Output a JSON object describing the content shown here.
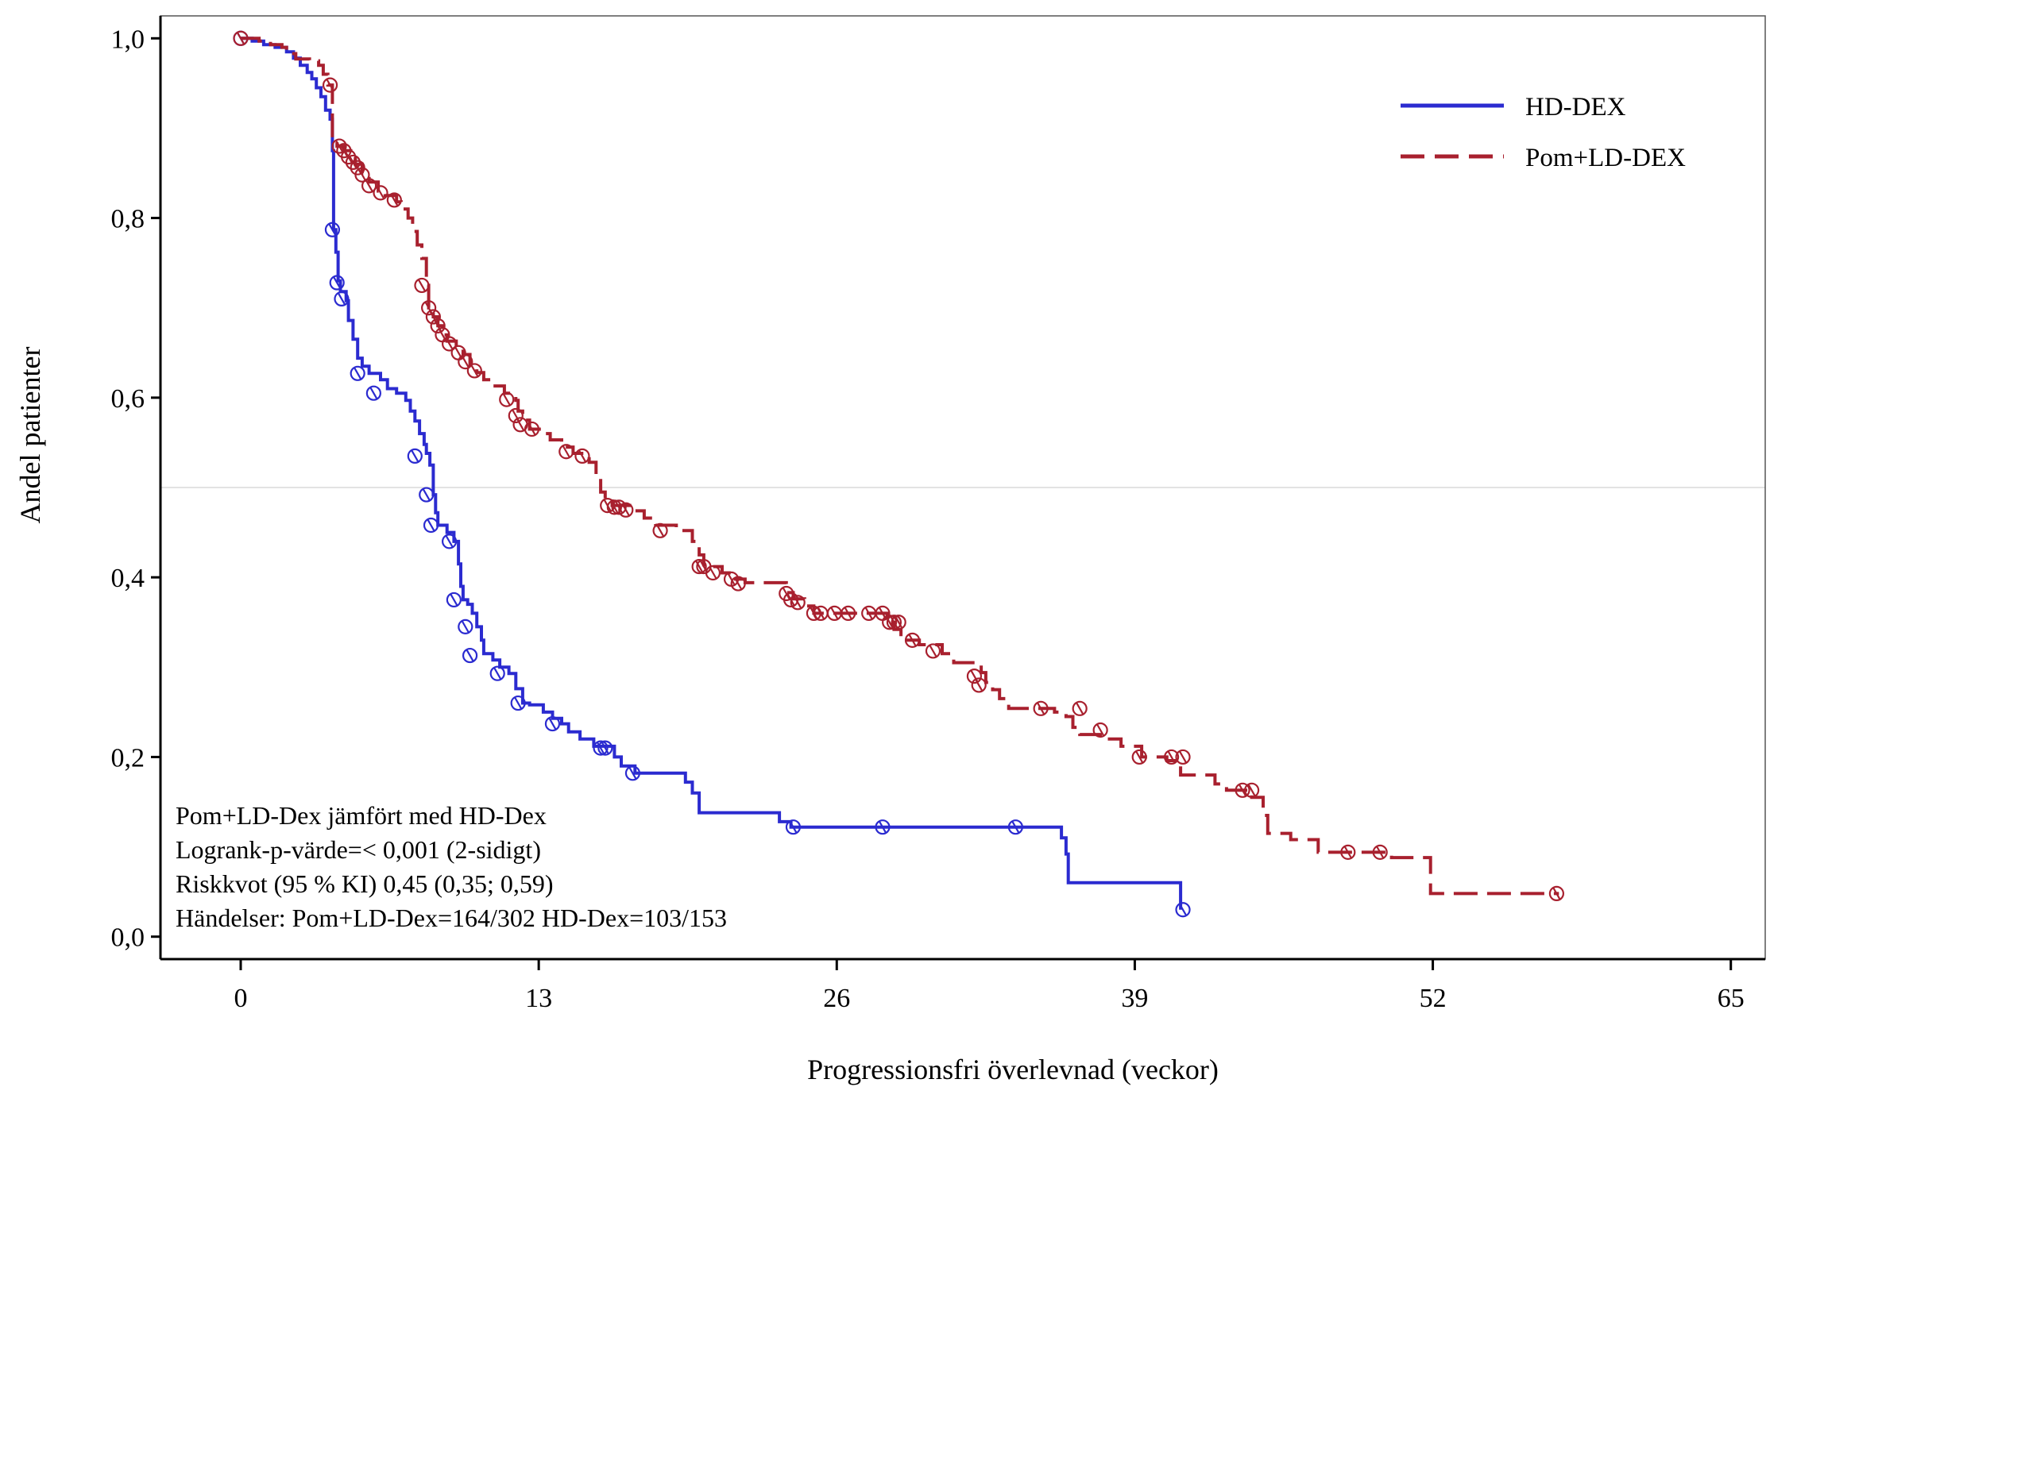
{
  "chart_data": {
    "type": "line",
    "subtype": "kaplan-meier",
    "xlabel": "Progressionsfri överlevnad (veckor)",
    "ylabel": "Andel patienter",
    "xlim": [
      -3.5,
      66.5
    ],
    "ylim": [
      -0.025,
      1.025
    ],
    "x_ticks": [
      0,
      13,
      26,
      39,
      52,
      65
    ],
    "x_tick_labels": [
      "0",
      "13",
      "26",
      "39",
      "52",
      "65"
    ],
    "y_ticks": [
      0.0,
      0.2,
      0.4,
      0.6,
      0.8,
      1.0
    ],
    "y_tick_labels": [
      "0,0",
      "0,2",
      "0,4",
      "0,6",
      "0,8",
      "1,0"
    ],
    "reference_line_y": 0.5,
    "legend_position": "top-right",
    "series": [
      {
        "name": "HD-DEX",
        "color": "#2b2bd0",
        "dash": "solid",
        "steps": [
          [
            0,
            1.0
          ],
          [
            0.5,
            0.997
          ],
          [
            1.0,
            0.993
          ],
          [
            1.5,
            0.99
          ],
          [
            2.0,
            0.985
          ],
          [
            2.3,
            0.978
          ],
          [
            2.6,
            0.97
          ],
          [
            2.9,
            0.962
          ],
          [
            3.1,
            0.955
          ],
          [
            3.3,
            0.945
          ],
          [
            3.5,
            0.935
          ],
          [
            3.7,
            0.92
          ],
          [
            3.9,
            0.91
          ],
          [
            4.0,
            0.875
          ],
          [
            4.05,
            0.787
          ],
          [
            4.15,
            0.762
          ],
          [
            4.25,
            0.73
          ],
          [
            4.35,
            0.718
          ],
          [
            4.6,
            0.708
          ],
          [
            4.7,
            0.686
          ],
          [
            4.9,
            0.665
          ],
          [
            5.1,
            0.644
          ],
          [
            5.3,
            0.635
          ],
          [
            5.6,
            0.627
          ],
          [
            6.1,
            0.62
          ],
          [
            6.4,
            0.61
          ],
          [
            6.8,
            0.605
          ],
          [
            7.2,
            0.597
          ],
          [
            7.4,
            0.585
          ],
          [
            7.6,
            0.574
          ],
          [
            7.8,
            0.56
          ],
          [
            8.0,
            0.548
          ],
          [
            8.1,
            0.538
          ],
          [
            8.25,
            0.525
          ],
          [
            8.4,
            0.492
          ],
          [
            8.5,
            0.472
          ],
          [
            8.6,
            0.458
          ],
          [
            9.0,
            0.45
          ],
          [
            9.3,
            0.44
          ],
          [
            9.5,
            0.415
          ],
          [
            9.6,
            0.39
          ],
          [
            9.7,
            0.375
          ],
          [
            9.9,
            0.37
          ],
          [
            10.1,
            0.36
          ],
          [
            10.3,
            0.345
          ],
          [
            10.5,
            0.33
          ],
          [
            10.6,
            0.315
          ],
          [
            11.0,
            0.308
          ],
          [
            11.3,
            0.3
          ],
          [
            11.7,
            0.293
          ],
          [
            12.0,
            0.276
          ],
          [
            12.3,
            0.26
          ],
          [
            12.6,
            0.258
          ],
          [
            13.2,
            0.25
          ],
          [
            13.6,
            0.243
          ],
          [
            14.0,
            0.237
          ],
          [
            14.3,
            0.228
          ],
          [
            14.8,
            0.22
          ],
          [
            15.4,
            0.212
          ],
          [
            16.3,
            0.2
          ],
          [
            16.6,
            0.19
          ],
          [
            17.2,
            0.182
          ],
          [
            19.4,
            0.172
          ],
          [
            19.7,
            0.16
          ],
          [
            20.0,
            0.138
          ],
          [
            23.5,
            0.128
          ],
          [
            24.0,
            0.122
          ],
          [
            35.8,
            0.11
          ],
          [
            36.0,
            0.092
          ],
          [
            36.1,
            0.06
          ],
          [
            41.0,
            0.03
          ]
        ],
        "censored": [
          [
            0,
            1.0
          ],
          [
            4.0,
            0.787
          ],
          [
            4.2,
            0.728
          ],
          [
            4.4,
            0.71
          ],
          [
            5.1,
            0.627
          ],
          [
            5.8,
            0.605
          ],
          [
            7.6,
            0.535
          ],
          [
            8.1,
            0.492
          ],
          [
            8.3,
            0.458
          ],
          [
            9.1,
            0.44
          ],
          [
            9.3,
            0.375
          ],
          [
            9.8,
            0.345
          ],
          [
            10.0,
            0.313
          ],
          [
            11.2,
            0.293
          ],
          [
            12.1,
            0.26
          ],
          [
            13.6,
            0.237
          ],
          [
            15.7,
            0.21
          ],
          [
            15.9,
            0.21
          ],
          [
            17.1,
            0.182
          ],
          [
            24.1,
            0.122
          ],
          [
            28.0,
            0.122
          ],
          [
            33.8,
            0.122
          ],
          [
            41.1,
            0.03
          ]
        ]
      },
      {
        "name": "Pom+LD-DEX",
        "color": "#a8202e",
        "dash": "dashed",
        "steps": [
          [
            0,
            1.0
          ],
          [
            0.8,
            0.997
          ],
          [
            1.3,
            0.993
          ],
          [
            1.8,
            0.99
          ],
          [
            2.0,
            0.983
          ],
          [
            2.4,
            0.977
          ],
          [
            3.0,
            0.975
          ],
          [
            3.4,
            0.97
          ],
          [
            3.6,
            0.96
          ],
          [
            3.8,
            0.948
          ],
          [
            4.0,
            0.886
          ],
          [
            4.2,
            0.88
          ],
          [
            4.5,
            0.875
          ],
          [
            4.8,
            0.868
          ],
          [
            5.0,
            0.86
          ],
          [
            5.3,
            0.85
          ],
          [
            5.6,
            0.84
          ],
          [
            6.0,
            0.83
          ],
          [
            6.3,
            0.825
          ],
          [
            6.8,
            0.818
          ],
          [
            7.0,
            0.81
          ],
          [
            7.3,
            0.8
          ],
          [
            7.5,
            0.785
          ],
          [
            7.7,
            0.77
          ],
          [
            7.9,
            0.755
          ],
          [
            8.1,
            0.725
          ],
          [
            8.2,
            0.7
          ],
          [
            8.4,
            0.69
          ],
          [
            8.6,
            0.68
          ],
          [
            8.8,
            0.67
          ],
          [
            9.0,
            0.663
          ],
          [
            9.4,
            0.656
          ],
          [
            9.7,
            0.648
          ],
          [
            10.0,
            0.635
          ],
          [
            10.3,
            0.628
          ],
          [
            10.6,
            0.62
          ],
          [
            11.0,
            0.613
          ],
          [
            11.5,
            0.605
          ],
          [
            12.0,
            0.597
          ],
          [
            12.1,
            0.585
          ],
          [
            12.3,
            0.575
          ],
          [
            12.6,
            0.565
          ],
          [
            13.2,
            0.56
          ],
          [
            13.5,
            0.553
          ],
          [
            14.0,
            0.545
          ],
          [
            14.5,
            0.538
          ],
          [
            15.2,
            0.528
          ],
          [
            15.5,
            0.51
          ],
          [
            15.7,
            0.495
          ],
          [
            15.9,
            0.485
          ],
          [
            16.2,
            0.48
          ],
          [
            17.1,
            0.474
          ],
          [
            17.6,
            0.466
          ],
          [
            18.1,
            0.458
          ],
          [
            19.0,
            0.452
          ],
          [
            19.7,
            0.44
          ],
          [
            20.0,
            0.425
          ],
          [
            20.2,
            0.412
          ],
          [
            21.0,
            0.405
          ],
          [
            21.5,
            0.398
          ],
          [
            22.0,
            0.394
          ],
          [
            23.8,
            0.383
          ],
          [
            24.1,
            0.376
          ],
          [
            24.6,
            0.368
          ],
          [
            25.0,
            0.36
          ],
          [
            28.2,
            0.35
          ],
          [
            28.5,
            0.342
          ],
          [
            28.8,
            0.33
          ],
          [
            29.6,
            0.325
          ],
          [
            30.6,
            0.315
          ],
          [
            31.1,
            0.305
          ],
          [
            32.3,
            0.294
          ],
          [
            32.5,
            0.283
          ],
          [
            32.8,
            0.275
          ],
          [
            33.1,
            0.265
          ],
          [
            33.5,
            0.254
          ],
          [
            35.5,
            0.25
          ],
          [
            36.0,
            0.245
          ],
          [
            36.3,
            0.233
          ],
          [
            36.6,
            0.225
          ],
          [
            37.5,
            0.22
          ],
          [
            38.4,
            0.212
          ],
          [
            39.3,
            0.2
          ],
          [
            40.4,
            0.196
          ],
          [
            41.0,
            0.18
          ],
          [
            42.5,
            0.17
          ],
          [
            43.0,
            0.163
          ],
          [
            44.1,
            0.155
          ],
          [
            44.6,
            0.135
          ],
          [
            44.8,
            0.115
          ],
          [
            45.8,
            0.108
          ],
          [
            47.0,
            0.094
          ],
          [
            50.2,
            0.088
          ],
          [
            51.3,
            0.088
          ],
          [
            51.9,
            0.048
          ],
          [
            57.5,
            0.048
          ]
        ],
        "censored": [
          [
            0,
            1.0
          ],
          [
            3.9,
            0.948
          ],
          [
            4.3,
            0.88
          ],
          [
            4.5,
            0.875
          ],
          [
            4.7,
            0.868
          ],
          [
            4.9,
            0.862
          ],
          [
            5.1,
            0.856
          ],
          [
            5.3,
            0.848
          ],
          [
            5.6,
            0.836
          ],
          [
            6.1,
            0.828
          ],
          [
            6.7,
            0.82
          ],
          [
            7.9,
            0.725
          ],
          [
            8.2,
            0.7
          ],
          [
            8.4,
            0.69
          ],
          [
            8.6,
            0.68
          ],
          [
            8.8,
            0.67
          ],
          [
            9.1,
            0.66
          ],
          [
            9.5,
            0.65
          ],
          [
            9.8,
            0.64
          ],
          [
            10.2,
            0.63
          ],
          [
            11.6,
            0.598
          ],
          [
            12.0,
            0.58
          ],
          [
            12.2,
            0.57
          ],
          [
            12.7,
            0.565
          ],
          [
            14.2,
            0.54
          ],
          [
            14.9,
            0.535
          ],
          [
            16.0,
            0.48
          ],
          [
            16.3,
            0.478
          ],
          [
            16.5,
            0.478
          ],
          [
            16.8,
            0.475
          ],
          [
            18.3,
            0.452
          ],
          [
            20.0,
            0.412
          ],
          [
            20.2,
            0.412
          ],
          [
            20.6,
            0.405
          ],
          [
            21.4,
            0.398
          ],
          [
            21.7,
            0.393
          ],
          [
            23.8,
            0.382
          ],
          [
            24.0,
            0.375
          ],
          [
            24.3,
            0.372
          ],
          [
            25.0,
            0.36
          ],
          [
            25.3,
            0.36
          ],
          [
            25.9,
            0.36
          ],
          [
            26.5,
            0.36
          ],
          [
            27.4,
            0.36
          ],
          [
            28.0,
            0.36
          ],
          [
            28.3,
            0.35
          ],
          [
            28.5,
            0.35
          ],
          [
            28.7,
            0.35
          ],
          [
            29.3,
            0.33
          ],
          [
            30.2,
            0.318
          ],
          [
            32.0,
            0.29
          ],
          [
            32.2,
            0.28
          ],
          [
            34.9,
            0.254
          ],
          [
            36.6,
            0.254
          ],
          [
            37.5,
            0.23
          ],
          [
            39.2,
            0.2
          ],
          [
            40.6,
            0.2
          ],
          [
            41.1,
            0.2
          ],
          [
            43.7,
            0.163
          ],
          [
            44.1,
            0.163
          ],
          [
            48.3,
            0.094
          ],
          [
            49.7,
            0.094
          ],
          [
            57.4,
            0.048
          ]
        ]
      }
    ],
    "legend": [
      {
        "label": "HD-DEX",
        "color": "#2b2bd0",
        "dash": "solid"
      },
      {
        "label": "Pom+LD-DEX",
        "color": "#a8202e",
        "dash": "dashed"
      }
    ],
    "annotation_lines": [
      "Pom+LD-Dex jämfört med HD-Dex",
      "Logrank-p-värde=< 0,001 (2-sidigt)",
      "Riskkvot (95 % KI) 0,45 (0,35; 0,59)",
      "Händelser: Pom+LD-Dex=164/302 HD-Dex=103/153"
    ]
  }
}
